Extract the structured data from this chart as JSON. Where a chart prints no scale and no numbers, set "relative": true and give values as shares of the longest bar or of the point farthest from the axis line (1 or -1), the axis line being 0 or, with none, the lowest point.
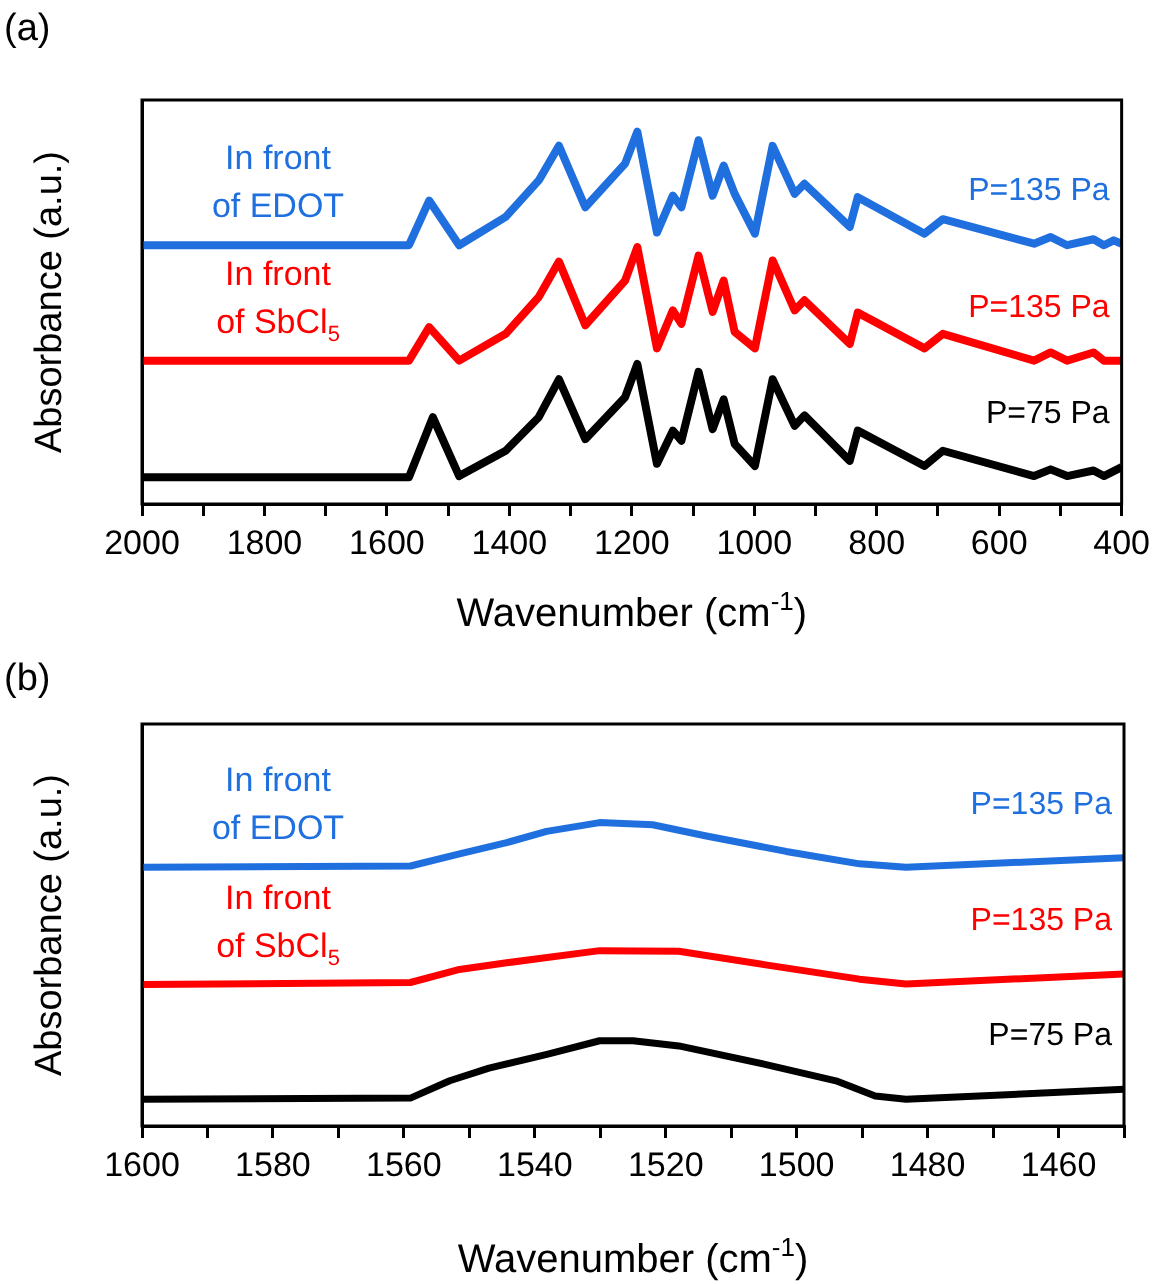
{
  "chart_data": [
    {
      "type": "line",
      "title": "(a)",
      "xlabel": "Wavenumber (cm$^{-1}$)",
      "ylabel": "Absorbance (a.u.)",
      "relative": true,
      "tick_labels": "x",
      "xlim": [
        2000,
        400
      ],
      "xticks": [
        2000,
        {
          "value": 1900,
          "label": null
        },
        1800,
        {
          "value": 1700,
          "label": null
        },
        1600,
        {
          "value": 1500,
          "label": null
        },
        1400,
        {
          "value": 1300,
          "label": null
        },
        1200,
        {
          "value": 1100,
          "label": null
        },
        1000,
        {
          "value": 900,
          "label": null
        },
        800,
        {
          "value": 700,
          "label": null
        },
        600,
        {
          "value": 500,
          "label": null
        },
        400
      ],
      "annotations": [
        "In front\nof EDOT",
        "In front\nof SbCl$_{5}$"
      ],
      "series": [
        {
          "name": "P=135 Pa",
          "color": "#1f6fdf",
          "x": [
            2000,
            1564,
            1531,
            1482,
            1406,
            1352,
            1319,
            1276,
            1211,
            1191,
            1159,
            1133,
            1119,
            1091,
            1068,
            1050,
            1032,
            999,
            970,
            934,
            918,
            844,
            831,
            722,
            692,
            543,
            516,
            489,
            446,
            429,
            413,
            400
          ],
          "values": [
            0.695,
            0.695,
            0.815,
            0.695,
            0.771,
            0.869,
            0.962,
            0.797,
            0.914,
            1.0,
            0.729,
            0.828,
            0.797,
            0.977,
            0.828,
            0.909,
            0.833,
            0.726,
            0.962,
            0.833,
            0.86,
            0.744,
            0.824,
            0.726,
            0.765,
            0.699,
            0.717,
            0.695,
            0.711,
            0.695,
            0.708,
            0.699
          ]
        },
        {
          "name": "P=135 Pa",
          "color": "#ff0000",
          "x": [
            2000,
            1564,
            1531,
            1482,
            1406,
            1352,
            1319,
            1276,
            1211,
            1191,
            1159,
            1133,
            1119,
            1091,
            1068,
            1050,
            1032,
            999,
            970,
            934,
            918,
            844,
            831,
            722,
            692,
            543,
            516,
            489,
            446,
            429,
            400
          ],
          "values": [
            0.385,
            0.385,
            0.475,
            0.385,
            0.457,
            0.556,
            0.651,
            0.48,
            0.6,
            0.69,
            0.418,
            0.52,
            0.484,
            0.667,
            0.516,
            0.6,
            0.462,
            0.418,
            0.654,
            0.52,
            0.547,
            0.43,
            0.514,
            0.418,
            0.457,
            0.385,
            0.407,
            0.385,
            0.407,
            0.385,
            0.385
          ]
        },
        {
          "name": "P=75 Pa",
          "color": "#000000",
          "x": [
            2000,
            1564,
            1525,
            1482,
            1406,
            1352,
            1319,
            1276,
            1211,
            1191,
            1159,
            1133,
            1119,
            1091,
            1068,
            1050,
            1032,
            999,
            970,
            934,
            918,
            844,
            831,
            722,
            692,
            543,
            516,
            489,
            446,
            429,
            400
          ],
          "values": [
            0.072,
            0.072,
            0.233,
            0.075,
            0.143,
            0.233,
            0.335,
            0.174,
            0.287,
            0.376,
            0.108,
            0.197,
            0.17,
            0.355,
            0.201,
            0.281,
            0.161,
            0.102,
            0.335,
            0.21,
            0.238,
            0.116,
            0.197,
            0.102,
            0.143,
            0.075,
            0.093,
            0.075,
            0.09,
            0.075,
            0.099
          ]
        }
      ]
    },
    {
      "type": "line",
      "title": "(b)",
      "xlabel": "Wavenumber (cm$^{-1}$)",
      "ylabel": "Absorbance (a.u.)",
      "relative": true,
      "tick_labels": "x",
      "xlim": [
        1600,
        1450
      ],
      "xticks": [
        1600,
        {
          "value": 1590,
          "label": null
        },
        1580,
        {
          "value": 1570,
          "label": null
        },
        1560,
        {
          "value": 1550,
          "label": null
        },
        1540,
        {
          "value": 1530,
          "label": null
        },
        1520,
        {
          "value": 1510,
          "label": null
        },
        1500,
        {
          "value": 1490,
          "label": null
        },
        1480,
        {
          "value": 1470,
          "label": null
        },
        1460,
        {
          "value": 1450,
          "label": null
        }
      ],
      "annotations": [
        "In front\nof EDOT",
        "In front\nof SbCl$_{5}$"
      ],
      "series": [
        {
          "name": "P=135 Pa",
          "color": "#1f6fdf",
          "x": [
            1600,
            1559,
            1551.5,
            1544.3,
            1538.2,
            1530.1,
            1522,
            1513.8,
            1501.6,
            1490.4,
            1483.3,
            1450
          ],
          "values": [
            0.853,
            0.857,
            0.897,
            0.934,
            0.971,
            1.0,
            0.993,
            0.956,
            0.905,
            0.864,
            0.853,
            0.884
          ]
        },
        {
          "name": "P=135 Pa",
          "color": "#ff0000",
          "x": [
            1600,
            1559,
            1551.5,
            1544.3,
            1530.1,
            1518,
            1505,
            1490.4,
            1483.3,
            1450
          ],
          "values": [
            0.466,
            0.473,
            0.516,
            0.538,
            0.578,
            0.576,
            0.532,
            0.484,
            0.468,
            0.501
          ]
        },
        {
          "name": "P=75 Pa",
          "color": "#000000",
          "x": [
            1600,
            1559,
            1553,
            1547,
            1538,
            1530.1,
            1525,
            1518,
            1505,
            1494,
            1488,
            1483.3,
            1450
          ],
          "values": [
            0.088,
            0.092,
            0.149,
            0.191,
            0.237,
            0.281,
            0.281,
            0.264,
            0.204,
            0.149,
            0.099,
            0.088,
            0.121
          ]
        }
      ]
    }
  ]
}
